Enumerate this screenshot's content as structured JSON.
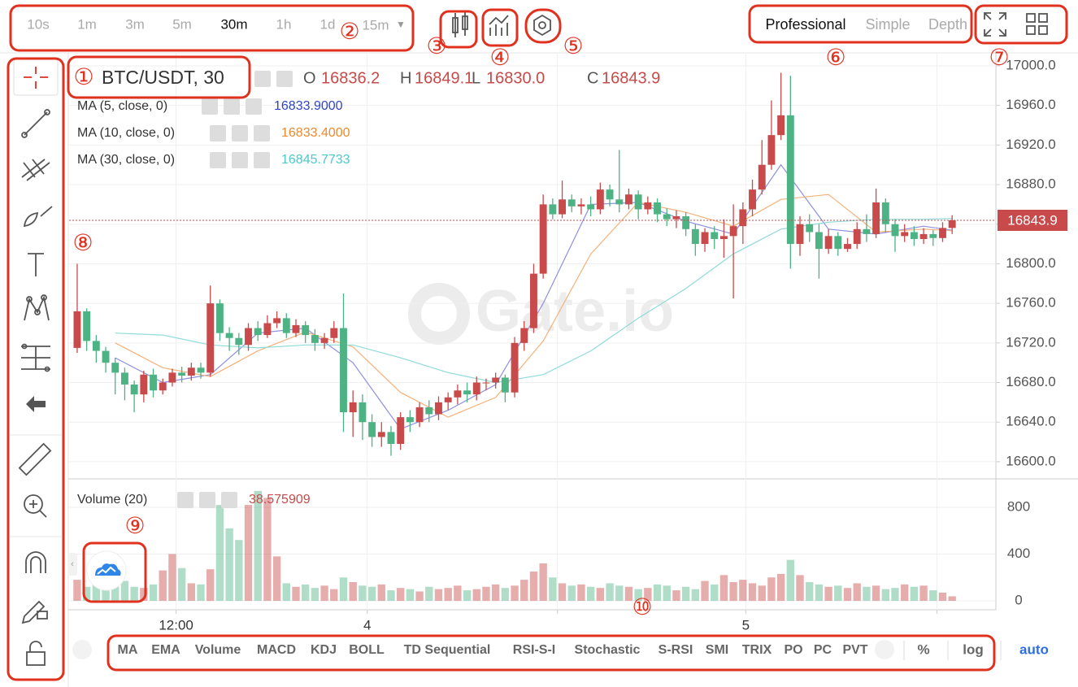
{
  "toolbar": {
    "intervals": [
      "10s",
      "1m",
      "3m",
      "5m",
      "30m",
      "1h",
      "1d"
    ],
    "active_interval": "30m",
    "interval_more": "15m",
    "modes": [
      "Professional",
      "Simple",
      "Depth"
    ]
  },
  "chart_data": {
    "type": "candlestick",
    "symbol": "BTC/USDT, 30",
    "ohlc_letters": [
      "O",
      "H",
      "L",
      "C"
    ],
    "last_labels": [
      "16836.2",
      "16849.1",
      "16830.0",
      "16843.9"
    ],
    "watermark": "Gate.io",
    "up_color": "#c84a4a",
    "down_color": "#4db384",
    "open": [
      16715,
      16752,
      16722,
      16712,
      16700,
      16690,
      16678,
      16668,
      16688,
      16672,
      16680,
      16690,
      16687,
      16695,
      16690,
      16760,
      16730,
      16725,
      16718,
      16735,
      16728,
      16740,
      16745,
      16730,
      16738,
      16728,
      16720,
      16725,
      16735,
      16650,
      16660,
      16640,
      16625,
      16630,
      16618,
      16645,
      16640,
      16655,
      16648,
      16660,
      16665,
      16672,
      16668,
      16680,
      16680,
      16685,
      16670,
      16720,
      16735,
      16790,
      16860,
      16850,
      16865,
      16858,
      16860,
      16855,
      16875,
      16865,
      16860,
      16870,
      16855,
      16862,
      16850,
      16845,
      16848,
      16835,
      16820,
      16832,
      16825,
      16828,
      16838,
      16855,
      16875,
      16900,
      16930,
      16950,
      16820,
      16840,
      16832,
      16815,
      16828,
      16815,
      16820,
      16835,
      16830,
      16862,
      16840,
      16828,
      16832,
      16825,
      16830,
      16826,
      16836.2
    ],
    "high": [
      16800,
      16755,
      16728,
      16716,
      16705,
      16695,
      16682,
      16692,
      16694,
      16684,
      16694,
      16696,
      16700,
      16700,
      16778,
      16764,
      16736,
      16730,
      16740,
      16742,
      16748,
      16752,
      16750,
      16744,
      16742,
      16734,
      16730,
      16742,
      16770,
      16672,
      16668,
      16648,
      16640,
      16636,
      16650,
      16652,
      16660,
      16662,
      16666,
      16670,
      16678,
      16680,
      16686,
      16684,
      16690,
      16688,
      16726,
      16742,
      16800,
      16870,
      16866,
      16884,
      16870,
      16866,
      16868,
      16882,
      16880,
      16915,
      16876,
      16874,
      16868,
      16866,
      16856,
      16854,
      16852,
      16840,
      16836,
      16838,
      16845,
      16860,
      16862,
      16885,
      16925,
      16965,
      16993,
      16990,
      16848,
      16850,
      16840,
      16835,
      16832,
      16826,
      16842,
      16850,
      16876,
      16866,
      16845,
      16840,
      16838,
      16836,
      16834,
      16842,
      16849.1
    ],
    "low": [
      16710,
      16712,
      16700,
      16690,
      16668,
      16662,
      16650,
      16660,
      16665,
      16668,
      16676,
      16680,
      16682,
      16684,
      16686,
      16722,
      16712,
      16708,
      16712,
      16722,
      16725,
      16735,
      16725,
      16726,
      16720,
      16712,
      16714,
      16720,
      16630,
      16625,
      16622,
      16615,
      16615,
      16606,
      16612,
      16630,
      16635,
      16640,
      16642,
      16652,
      16658,
      16660,
      16662,
      16672,
      16674,
      16660,
      16665,
      16712,
      16730,
      16785,
      16845,
      16846,
      16852,
      16850,
      16848,
      16850,
      16858,
      16852,
      16855,
      16845,
      16850,
      16842,
      16838,
      16836,
      16828,
      16808,
      16812,
      16815,
      16806,
      16765,
      16820,
      16848,
      16870,
      16895,
      16925,
      16795,
      16808,
      16822,
      16785,
      16810,
      16808,
      16812,
      16815,
      16822,
      16826,
      16832,
      16812,
      16822,
      16818,
      16820,
      16818,
      16822,
      16830
    ],
    "close": [
      16752,
      16722,
      16712,
      16700,
      16690,
      16678,
      16668,
      16688,
      16672,
      16680,
      16690,
      16687,
      16695,
      16690,
      16760,
      16730,
      16725,
      16718,
      16735,
      16728,
      16740,
      16745,
      16730,
      16738,
      16728,
      16720,
      16725,
      16735,
      16650,
      16660,
      16640,
      16625,
      16630,
      16618,
      16645,
      16640,
      16655,
      16648,
      16660,
      16665,
      16672,
      16668,
      16680,
      16680,
      16685,
      16670,
      16720,
      16735,
      16790,
      16860,
      16850,
      16865,
      16858,
      16860,
      16855,
      16875,
      16865,
      16860,
      16870,
      16855,
      16862,
      16850,
      16845,
      16848,
      16835,
      16820,
      16832,
      16825,
      16828,
      16838,
      16855,
      16875,
      16900,
      16930,
      16950,
      16820,
      16840,
      16832,
      16815,
      16828,
      16815,
      16820,
      16835,
      16830,
      16862,
      16840,
      16828,
      16832,
      16825,
      16830,
      16826,
      16836.2,
      16843.9
    ],
    "xlim": [
      -0.85,
      96.6
    ],
    "xticks": [
      {
        "value": 10.4,
        "label": "12:00"
      },
      {
        "value": 30.5,
        "label": "4"
      },
      {
        "value": 50.5,
        "label": null
      },
      {
        "value": 70.3,
        "label": "5"
      },
      {
        "value": 90.4,
        "label": null
      }
    ],
    "ylim": [
      16583.5,
      17009
    ],
    "yticks": [
      {
        "value": 16600,
        "label": "16600.0"
      },
      {
        "value": 16640,
        "label": "16640.0"
      },
      {
        "value": 16680,
        "label": "16680.0"
      },
      {
        "value": 16720,
        "label": "16720.0"
      },
      {
        "value": 16760,
        "label": "16760.0"
      },
      {
        "value": 16800,
        "label": "16800.0"
      },
      {
        "value": 16840,
        "label": "16840.0"
      },
      {
        "value": 16880,
        "label": "16880.0"
      },
      {
        "value": 16920,
        "label": "16920.0"
      },
      {
        "value": 16960,
        "label": "16960.0"
      },
      {
        "value": 17000,
        "label": "17000.0"
      }
    ],
    "ma": [
      {
        "name": "MA (5, close, 0)",
        "color": "#8d8fe0",
        "label_color": "#2f44c8",
        "last_label": "16833.9000",
        "x": [
          4,
          9,
          14,
          19,
          24,
          29,
          34,
          39,
          44,
          49,
          54,
          59,
          64,
          69,
          74,
          79,
          84,
          89,
          92
        ],
        "values": [
          16705,
          16680,
          16688,
          16730,
          16735,
          16700,
          16633,
          16652,
          16678,
          16760,
          16860,
          16862,
          16843,
          16830,
          16900,
          16835,
          16830,
          16838,
          16833.9
        ]
      },
      {
        "name": "MA (10, close, 0)",
        "color": "#f3b27a",
        "label_color": "#ec8a2c",
        "last_label": "16833.4000",
        "x": [
          4,
          9,
          14,
          19,
          24,
          29,
          34,
          39,
          44,
          49,
          54,
          59,
          64,
          69,
          74,
          79,
          84,
          89,
          92
        ],
        "values": [
          16720,
          16695,
          16686,
          16712,
          16731,
          16716,
          16670,
          16645,
          16665,
          16722,
          16810,
          16862,
          16852,
          16838,
          16865,
          16870,
          16832,
          16835,
          16833.4
        ]
      },
      {
        "name": "MA (30, close, 0)",
        "color": "#8fdada",
        "label_color": "#4fc8c8",
        "last_label": "16845.7733",
        "x": [
          4,
          9,
          14,
          19,
          24,
          29,
          34,
          39,
          44,
          49,
          54,
          59,
          64,
          69,
          74,
          79,
          84,
          89,
          92
        ],
        "values": [
          16730,
          16728,
          16718,
          16715,
          16718,
          16718,
          16705,
          16690,
          16680,
          16688,
          16712,
          16745,
          16775,
          16810,
          16835,
          16842,
          16845,
          16845,
          16845.7733
        ]
      }
    ],
    "volume_panel": {
      "name": "Volume (20)",
      "ylim": [
        -76.5,
        1036
      ],
      "yticks": [
        0,
        400,
        800
      ],
      "values": [
        180,
        120,
        150,
        100,
        130,
        170,
        120,
        110,
        140,
        260,
        400,
        280,
        150,
        140,
        270,
        820,
        620,
        520,
        820,
        940,
        880,
        380,
        150,
        120,
        140,
        110,
        130,
        100,
        200,
        160,
        130,
        120,
        140,
        90,
        110,
        100,
        80,
        120,
        100,
        110,
        130,
        90,
        100,
        120,
        140,
        110,
        130,
        180,
        250,
        320,
        200,
        150,
        130,
        140,
        120,
        110,
        150,
        130,
        120,
        100,
        110,
        140,
        130,
        90,
        120,
        100,
        170,
        140,
        220,
        160,
        180,
        150,
        130,
        200,
        230,
        350,
        220,
        160,
        140,
        120,
        130,
        110,
        150,
        120,
        130,
        100,
        110,
        140,
        120,
        130,
        90,
        70,
        38.575909
      ]
    }
  },
  "indicators": [
    "MA",
    "EMA",
    "Volume",
    "MACD",
    "KDJ",
    "BOLL",
    "TD Sequential",
    "RSI-S-I",
    "Stochastic",
    "S-RSI",
    "SMI",
    "TRIX",
    "PO",
    "PC",
    "PVT"
  ],
  "scale_options": [
    "%",
    "log",
    "auto"
  ],
  "annotations": [
    "①",
    "②",
    "③",
    "④",
    "⑤",
    "⑥",
    "⑦",
    "⑧",
    "⑨",
    "⑩"
  ]
}
